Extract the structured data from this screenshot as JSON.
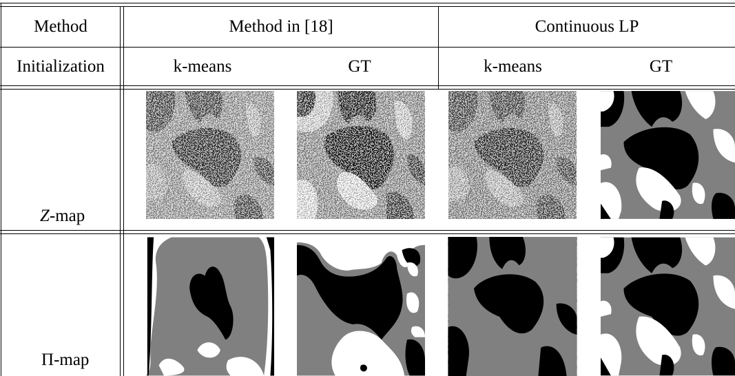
{
  "header": {
    "method_label": "Method",
    "method_in_label": "Method in [18]",
    "continuous_lp_label": "Continuous LP",
    "initialization_label": "Initialization",
    "kmeans_1": "k-means",
    "gt_1": "GT",
    "kmeans_2": "k-means",
    "gt_2": "GT"
  },
  "rows": {
    "z_map": {
      "symbol": "Z",
      "suffix": "-map"
    },
    "pi_map": {
      "symbol": "Π",
      "suffix": "-map"
    }
  },
  "colors": {
    "black": "#000000",
    "gray": "#808080",
    "white": "#ffffff"
  }
}
